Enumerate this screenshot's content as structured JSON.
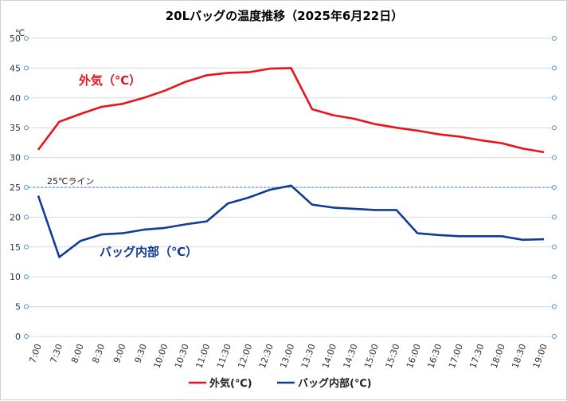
{
  "chart_data": {
    "type": "line",
    "title": "20Lバッグの温度推移（2025年6月22日）",
    "y_unit_label": "℃",
    "ylim": [
      0,
      50
    ],
    "y_ticks": [
      "0",
      "5",
      "10",
      "15",
      "20",
      "25",
      "30",
      "35",
      "40",
      "45",
      "50"
    ],
    "grid": true,
    "categories": [
      "7:00",
      "7:30",
      "8:00",
      "8:30",
      "9:00",
      "9:30",
      "10:00",
      "10:30",
      "11:00",
      "11:30",
      "12:00",
      "12:30",
      "13:00",
      "13:30",
      "14:00",
      "14:30",
      "15:00",
      "15:30",
      "16:00",
      "16:30",
      "17:00",
      "17:30",
      "18:00",
      "18:30",
      "19:00"
    ],
    "series": [
      {
        "name": "外気(℃)",
        "color": "#e8131b",
        "values": [
          31.3,
          36.0,
          37.3,
          38.5,
          39.0,
          40.0,
          41.2,
          42.7,
          43.8,
          44.2,
          44.3,
          44.9,
          45.0,
          38.1,
          37.1,
          36.5,
          35.6,
          35.0,
          34.5,
          33.9,
          33.5,
          32.9,
          32.4,
          31.5,
          30.9
        ]
      },
      {
        "name": "バッグ内部(℃)",
        "color": "#103c96",
        "values": [
          23.6,
          13.3,
          16.0,
          17.1,
          17.3,
          17.9,
          18.2,
          18.8,
          19.3,
          22.3,
          23.3,
          24.6,
          25.3,
          22.1,
          21.6,
          21.4,
          21.2,
          21.2,
          17.3,
          17.0,
          16.8,
          16.8,
          16.8,
          16.2,
          16.3
        ]
      }
    ],
    "reference_line": {
      "value": 25,
      "label": "25℃ライン",
      "color": "#5b9bd5",
      "style": "dashed"
    },
    "annotations": [
      {
        "text": "外気（℃）",
        "color": "#e8131b"
      },
      {
        "text": "バッグ内部（℃）",
        "color": "#103c96"
      }
    ],
    "legend": {
      "placement": "bottom",
      "items": [
        {
          "label": "外気(℃)",
          "color": "#e8131b"
        },
        {
          "label": "バッグ内部(℃)",
          "color": "#103c96"
        }
      ]
    },
    "right_axis_markers_color": "#4a90d9"
  }
}
